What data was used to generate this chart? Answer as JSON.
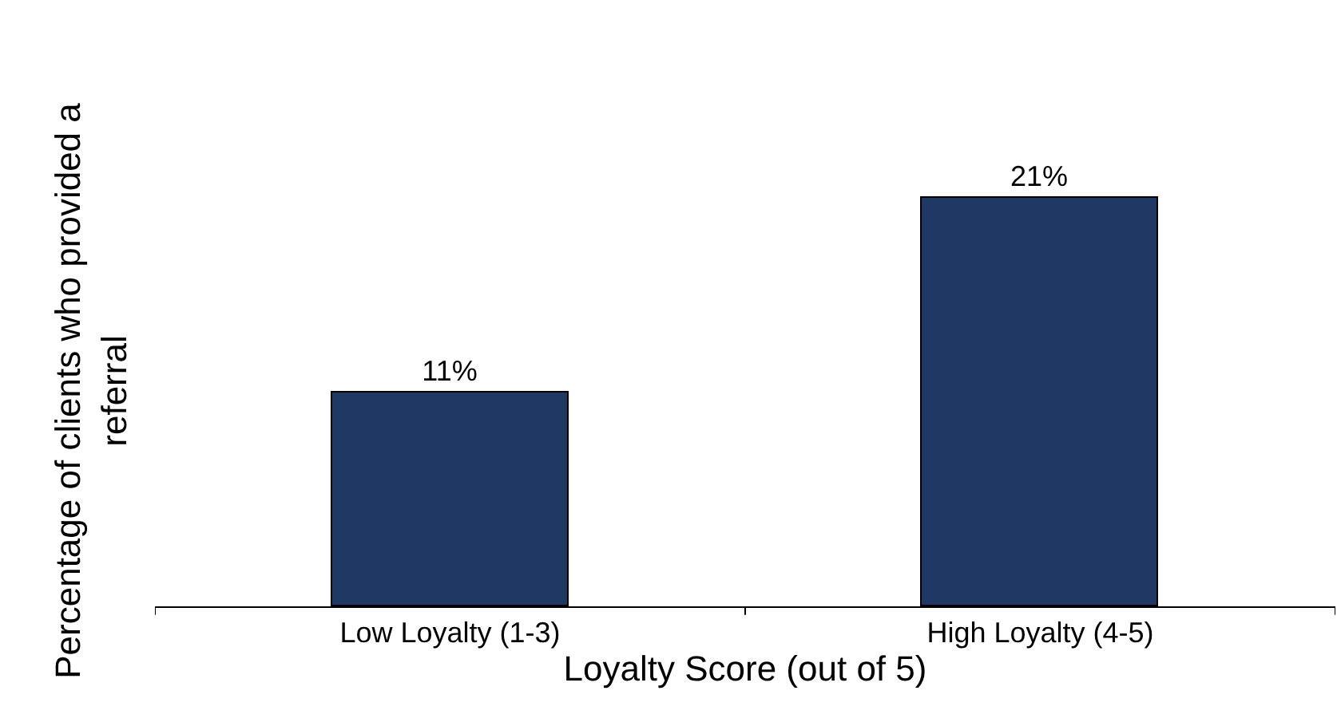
{
  "chart_data": {
    "type": "bar",
    "xlabel": "Loyalty Score (out of 5)",
    "ylabel": "Percentage of clients who provided a referral",
    "categories": [
      "Low Loyalty (1-3)",
      "High Loyalty (4-5)"
    ],
    "values": [
      11,
      21
    ],
    "value_labels": [
      "11%",
      "21%"
    ],
    "color": "#1f3864",
    "tick_labels": "x"
  }
}
